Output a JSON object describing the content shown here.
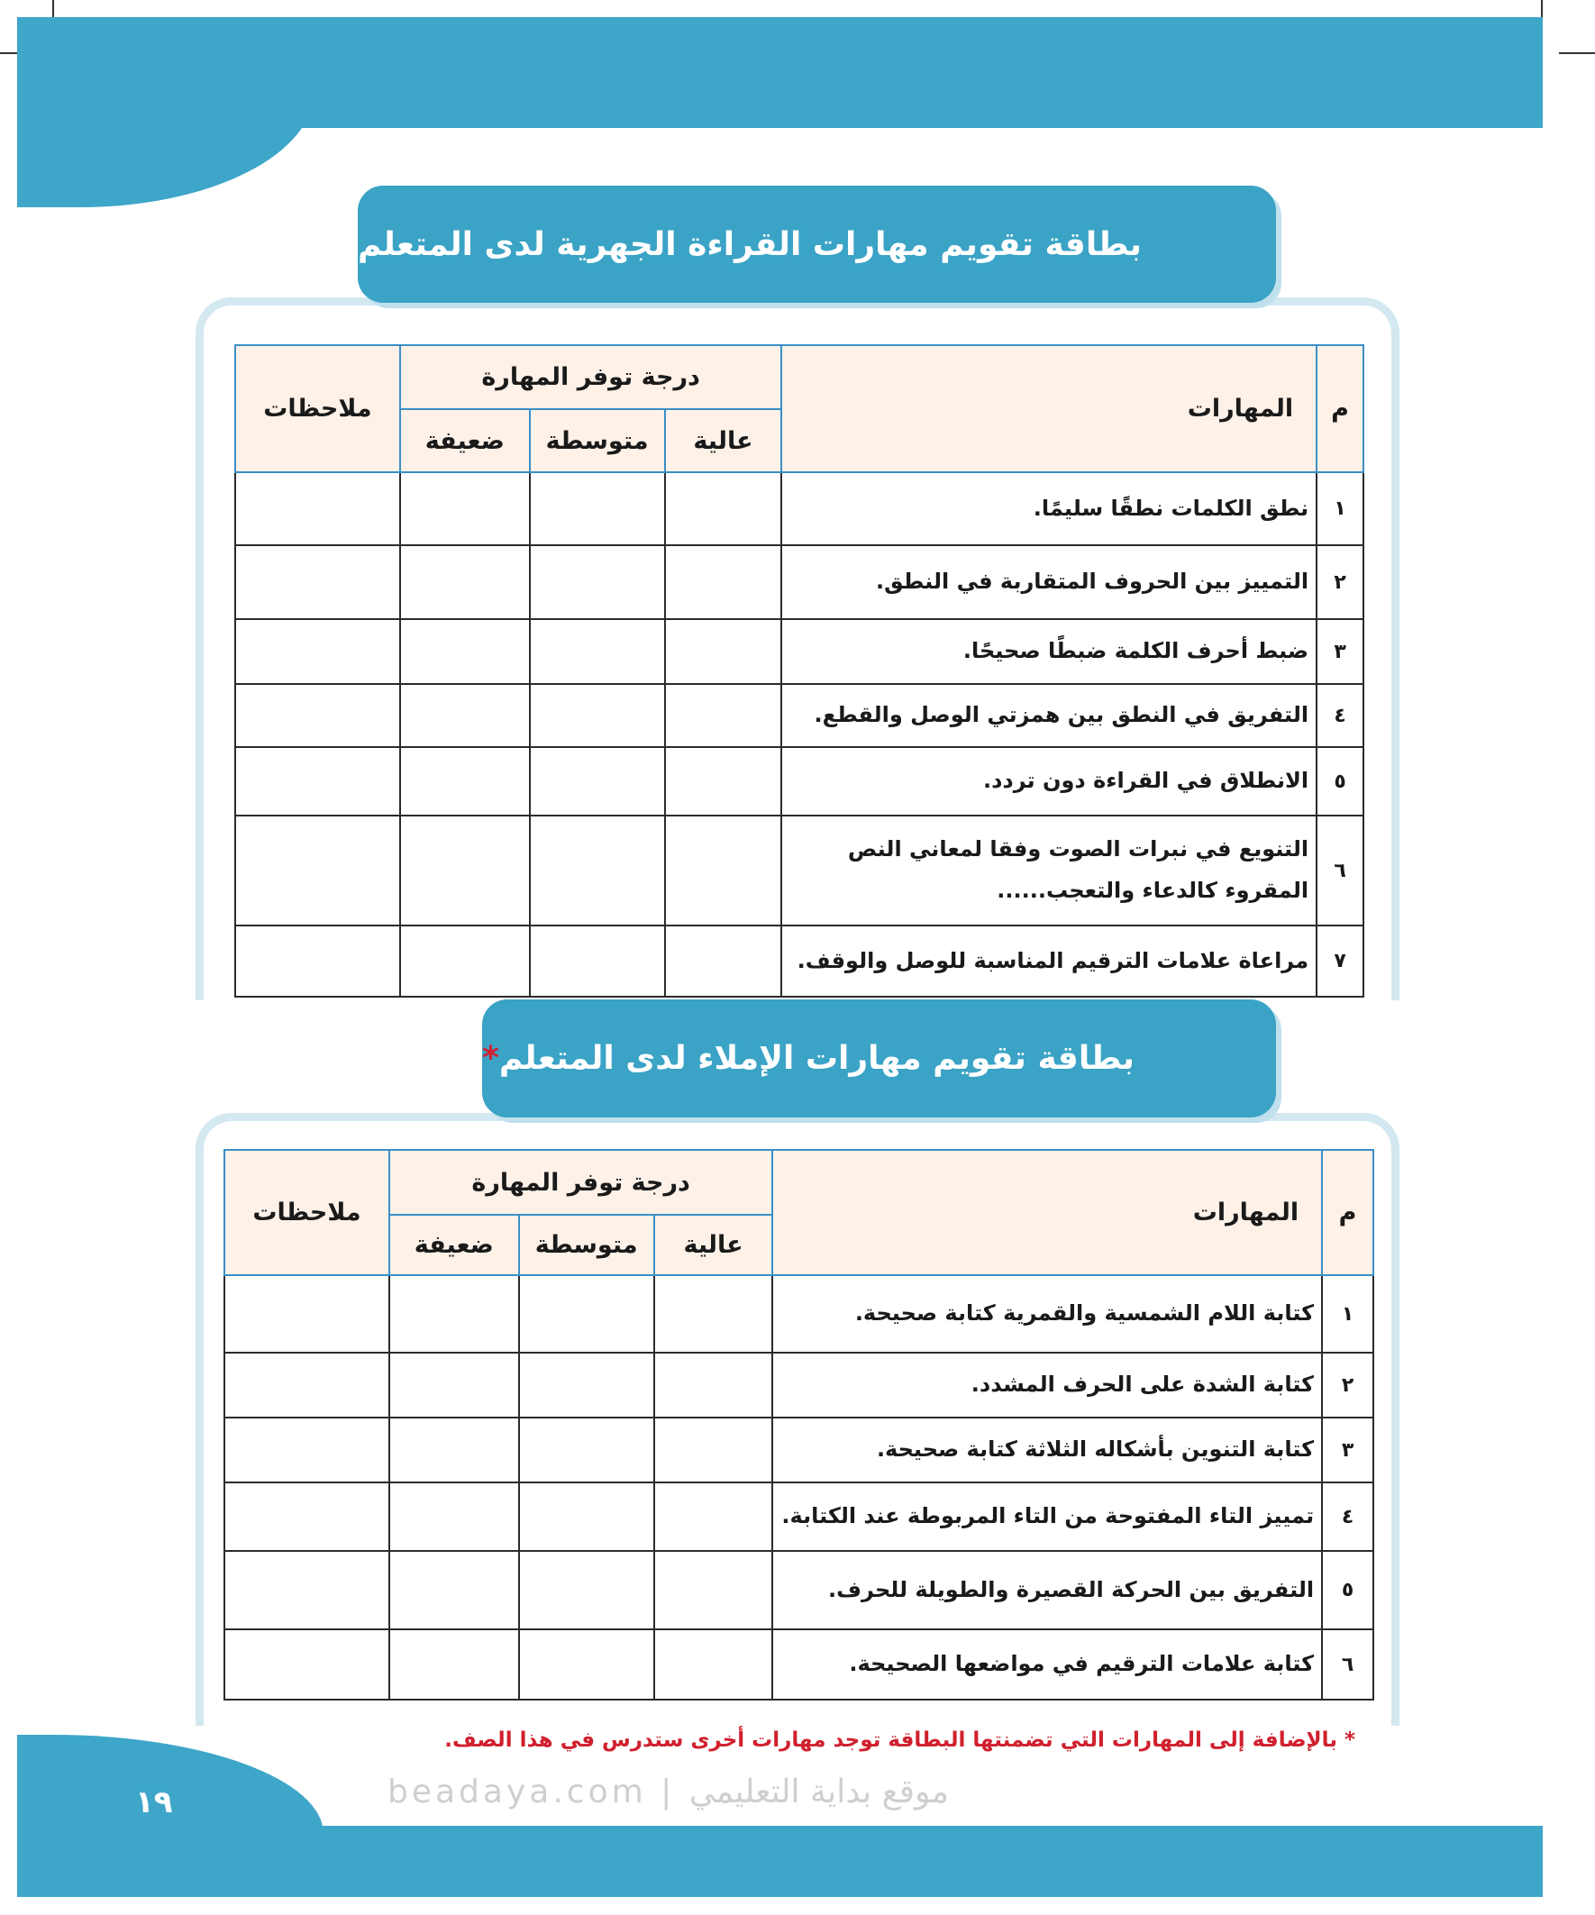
{
  "colors": {
    "accent": "#3ea6c9",
    "header_bg": "#fdf1e8",
    "footnote": "#d0202e"
  },
  "card1": {
    "title": "بطاقة تقويم مهارات القراءة الجهرية لدى المتعلم",
    "headers": {
      "num": "م",
      "skills": "المهارات",
      "degree": "درجة توفر المهارة",
      "high": "عالية",
      "medium": "متوسطة",
      "weak": "ضعيفة",
      "notes": "ملاحظات"
    },
    "rows": [
      {
        "num": "١",
        "skill": "نطق الكلمات نطقًا سليمًا."
      },
      {
        "num": "٢",
        "skill": "التمييز بين الحروف المتقاربة في النطق."
      },
      {
        "num": "٣",
        "skill": "ضبط أحرف الكلمة ضبطًا صحيحًا."
      },
      {
        "num": "٤",
        "skill": "التفريق في النطق بين همزتي الوصل والقطع."
      },
      {
        "num": "٥",
        "skill": "الانطلاق في القراءة دون تردد."
      },
      {
        "num": "٦",
        "skill": "التنويع في نبرات الصوت وفقا لمعاني النص المقروء كالدعاء والتعجب......"
      },
      {
        "num": "٧",
        "skill": "مراعاة علامات الترقيم المناسبة للوصل والوقف."
      }
    ]
  },
  "card2": {
    "title": "بطاقة تقويم مهارات الإملاء لدى المتعلم",
    "star": "*",
    "headers": {
      "num": "م",
      "skills": "المهارات",
      "degree": "درجة توفر المهارة",
      "high": "عالية",
      "medium": "متوسطة",
      "weak": "ضعيفة",
      "notes": "ملاحظات"
    },
    "rows": [
      {
        "num": "١",
        "skill": "كتابة اللام الشمسية والقمرية كتابة صحيحة."
      },
      {
        "num": "٢",
        "skill": "كتابة الشدة على الحرف المشدد."
      },
      {
        "num": "٣",
        "skill": "كتابة التنوين بأشكاله الثلاثة كتابة صحيحة."
      },
      {
        "num": "٤",
        "skill": "تمييز التاء المفتوحة من التاء المربوطة عند الكتابة."
      },
      {
        "num": "٥",
        "skill": "التفريق بين الحركة القصيرة والطويلة للحرف."
      },
      {
        "num": "٦",
        "skill": "كتابة علامات الترقيم في مواضعها الصحيحة."
      }
    ]
  },
  "footnote": "* بالإضافة إلى المهارات التي تضمنتها البطاقة توجد مهارات أخرى ستدرس في هذا الصف.",
  "watermark": "beadaya.com | موقع بداية التعليمي",
  "page_number": "١٩"
}
